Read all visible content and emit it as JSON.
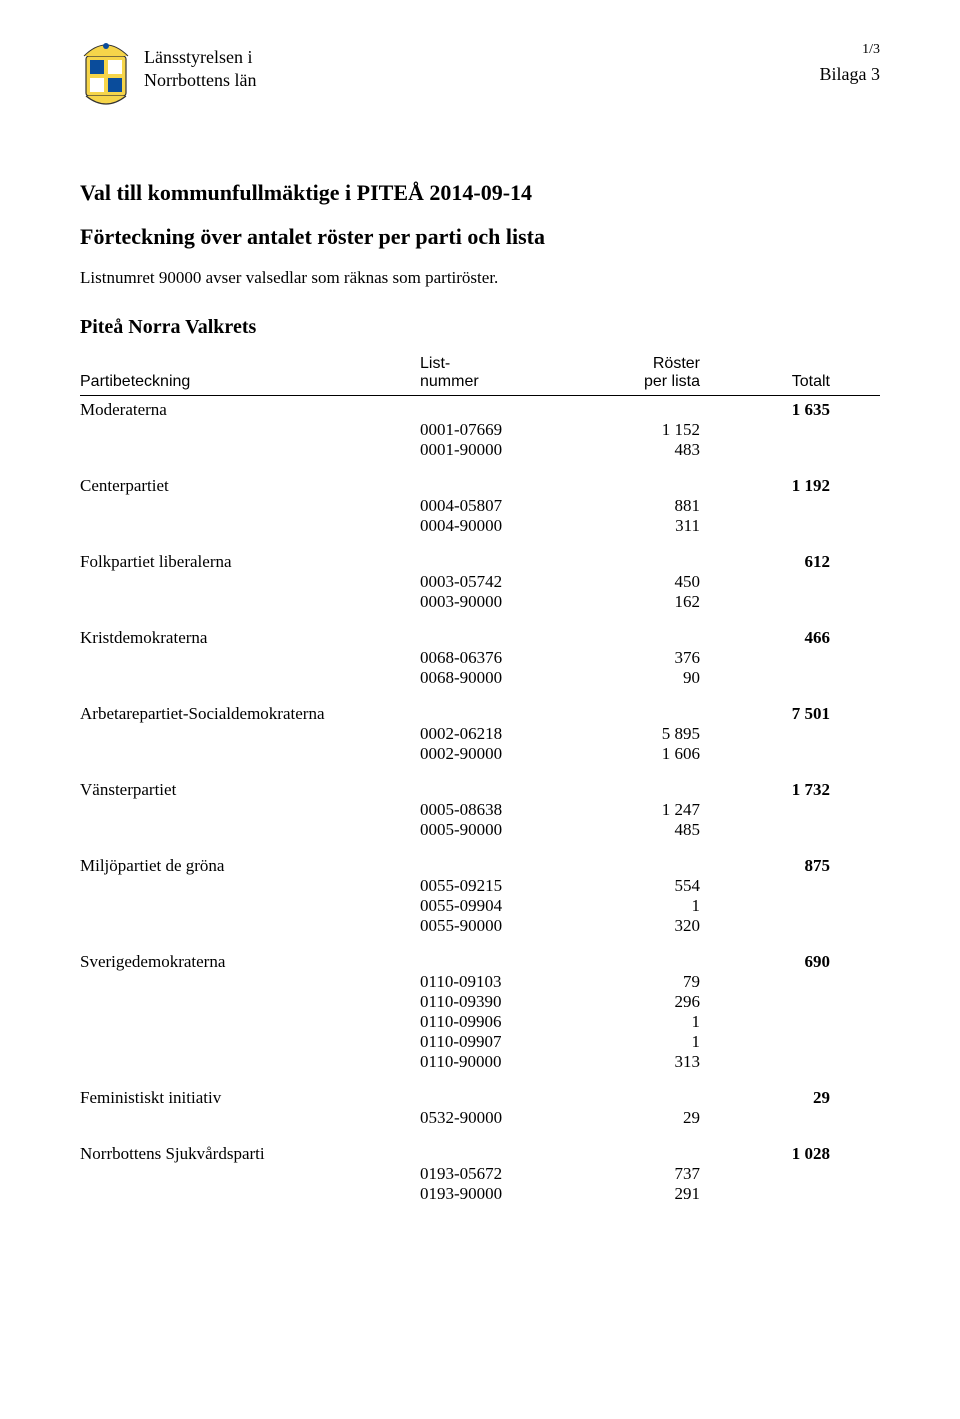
{
  "header": {
    "org_line1": "Länsstyrelsen i",
    "org_line2": "Norrbottens län",
    "page_num": "1/3",
    "bilaga": "Bilaga 3"
  },
  "title": "Val till kommunfullmäktige i PITEÅ 2014-09-14",
  "subtitle": "Förteckning över antalet röster per parti och lista",
  "note": "Listnumret 90000 avser valsedlar som räknas som partiröster.",
  "valkrets": "Piteå Norra Valkrets",
  "columns": {
    "name": "Partibeteckning",
    "list_line1": "List-",
    "list_line2": "nummer",
    "votes_line1": "Röster",
    "votes_line2": "per lista",
    "total": "Totalt"
  },
  "parties": [
    {
      "name": "Moderaterna",
      "total": "1 635",
      "rows": [
        {
          "list": "0001-07669",
          "votes": "1 152"
        },
        {
          "list": "0001-90000",
          "votes": "483"
        }
      ]
    },
    {
      "name": "Centerpartiet",
      "total": "1 192",
      "rows": [
        {
          "list": "0004-05807",
          "votes": "881"
        },
        {
          "list": "0004-90000",
          "votes": "311"
        }
      ]
    },
    {
      "name": "Folkpartiet liberalerna",
      "total": "612",
      "rows": [
        {
          "list": "0003-05742",
          "votes": "450"
        },
        {
          "list": "0003-90000",
          "votes": "162"
        }
      ]
    },
    {
      "name": "Kristdemokraterna",
      "total": "466",
      "rows": [
        {
          "list": "0068-06376",
          "votes": "376"
        },
        {
          "list": "0068-90000",
          "votes": "90"
        }
      ]
    },
    {
      "name": "Arbetarepartiet-Socialdemokraterna",
      "total": "7 501",
      "rows": [
        {
          "list": "0002-06218",
          "votes": "5 895"
        },
        {
          "list": "0002-90000",
          "votes": "1 606"
        }
      ]
    },
    {
      "name": "Vänsterpartiet",
      "total": "1 732",
      "rows": [
        {
          "list": "0005-08638",
          "votes": "1 247"
        },
        {
          "list": "0005-90000",
          "votes": "485"
        }
      ]
    },
    {
      "name": "Miljöpartiet de gröna",
      "total": "875",
      "rows": [
        {
          "list": "0055-09215",
          "votes": "554"
        },
        {
          "list": "0055-09904",
          "votes": "1"
        },
        {
          "list": "0055-90000",
          "votes": "320"
        }
      ]
    },
    {
      "name": "Sverigedemokraterna",
      "total": "690",
      "rows": [
        {
          "list": "0110-09103",
          "votes": "79"
        },
        {
          "list": "0110-09390",
          "votes": "296"
        },
        {
          "list": "0110-09906",
          "votes": "1"
        },
        {
          "list": "0110-09907",
          "votes": "1"
        },
        {
          "list": "0110-90000",
          "votes": "313"
        }
      ]
    },
    {
      "name": "Feministiskt initiativ",
      "total": "29",
      "rows": [
        {
          "list": "0532-90000",
          "votes": "29"
        }
      ]
    },
    {
      "name": "Norrbottens Sjukvårdsparti",
      "total": "1 028",
      "rows": [
        {
          "list": "0193-05672",
          "votes": "737"
        },
        {
          "list": "0193-90000",
          "votes": "291"
        }
      ]
    }
  ]
}
